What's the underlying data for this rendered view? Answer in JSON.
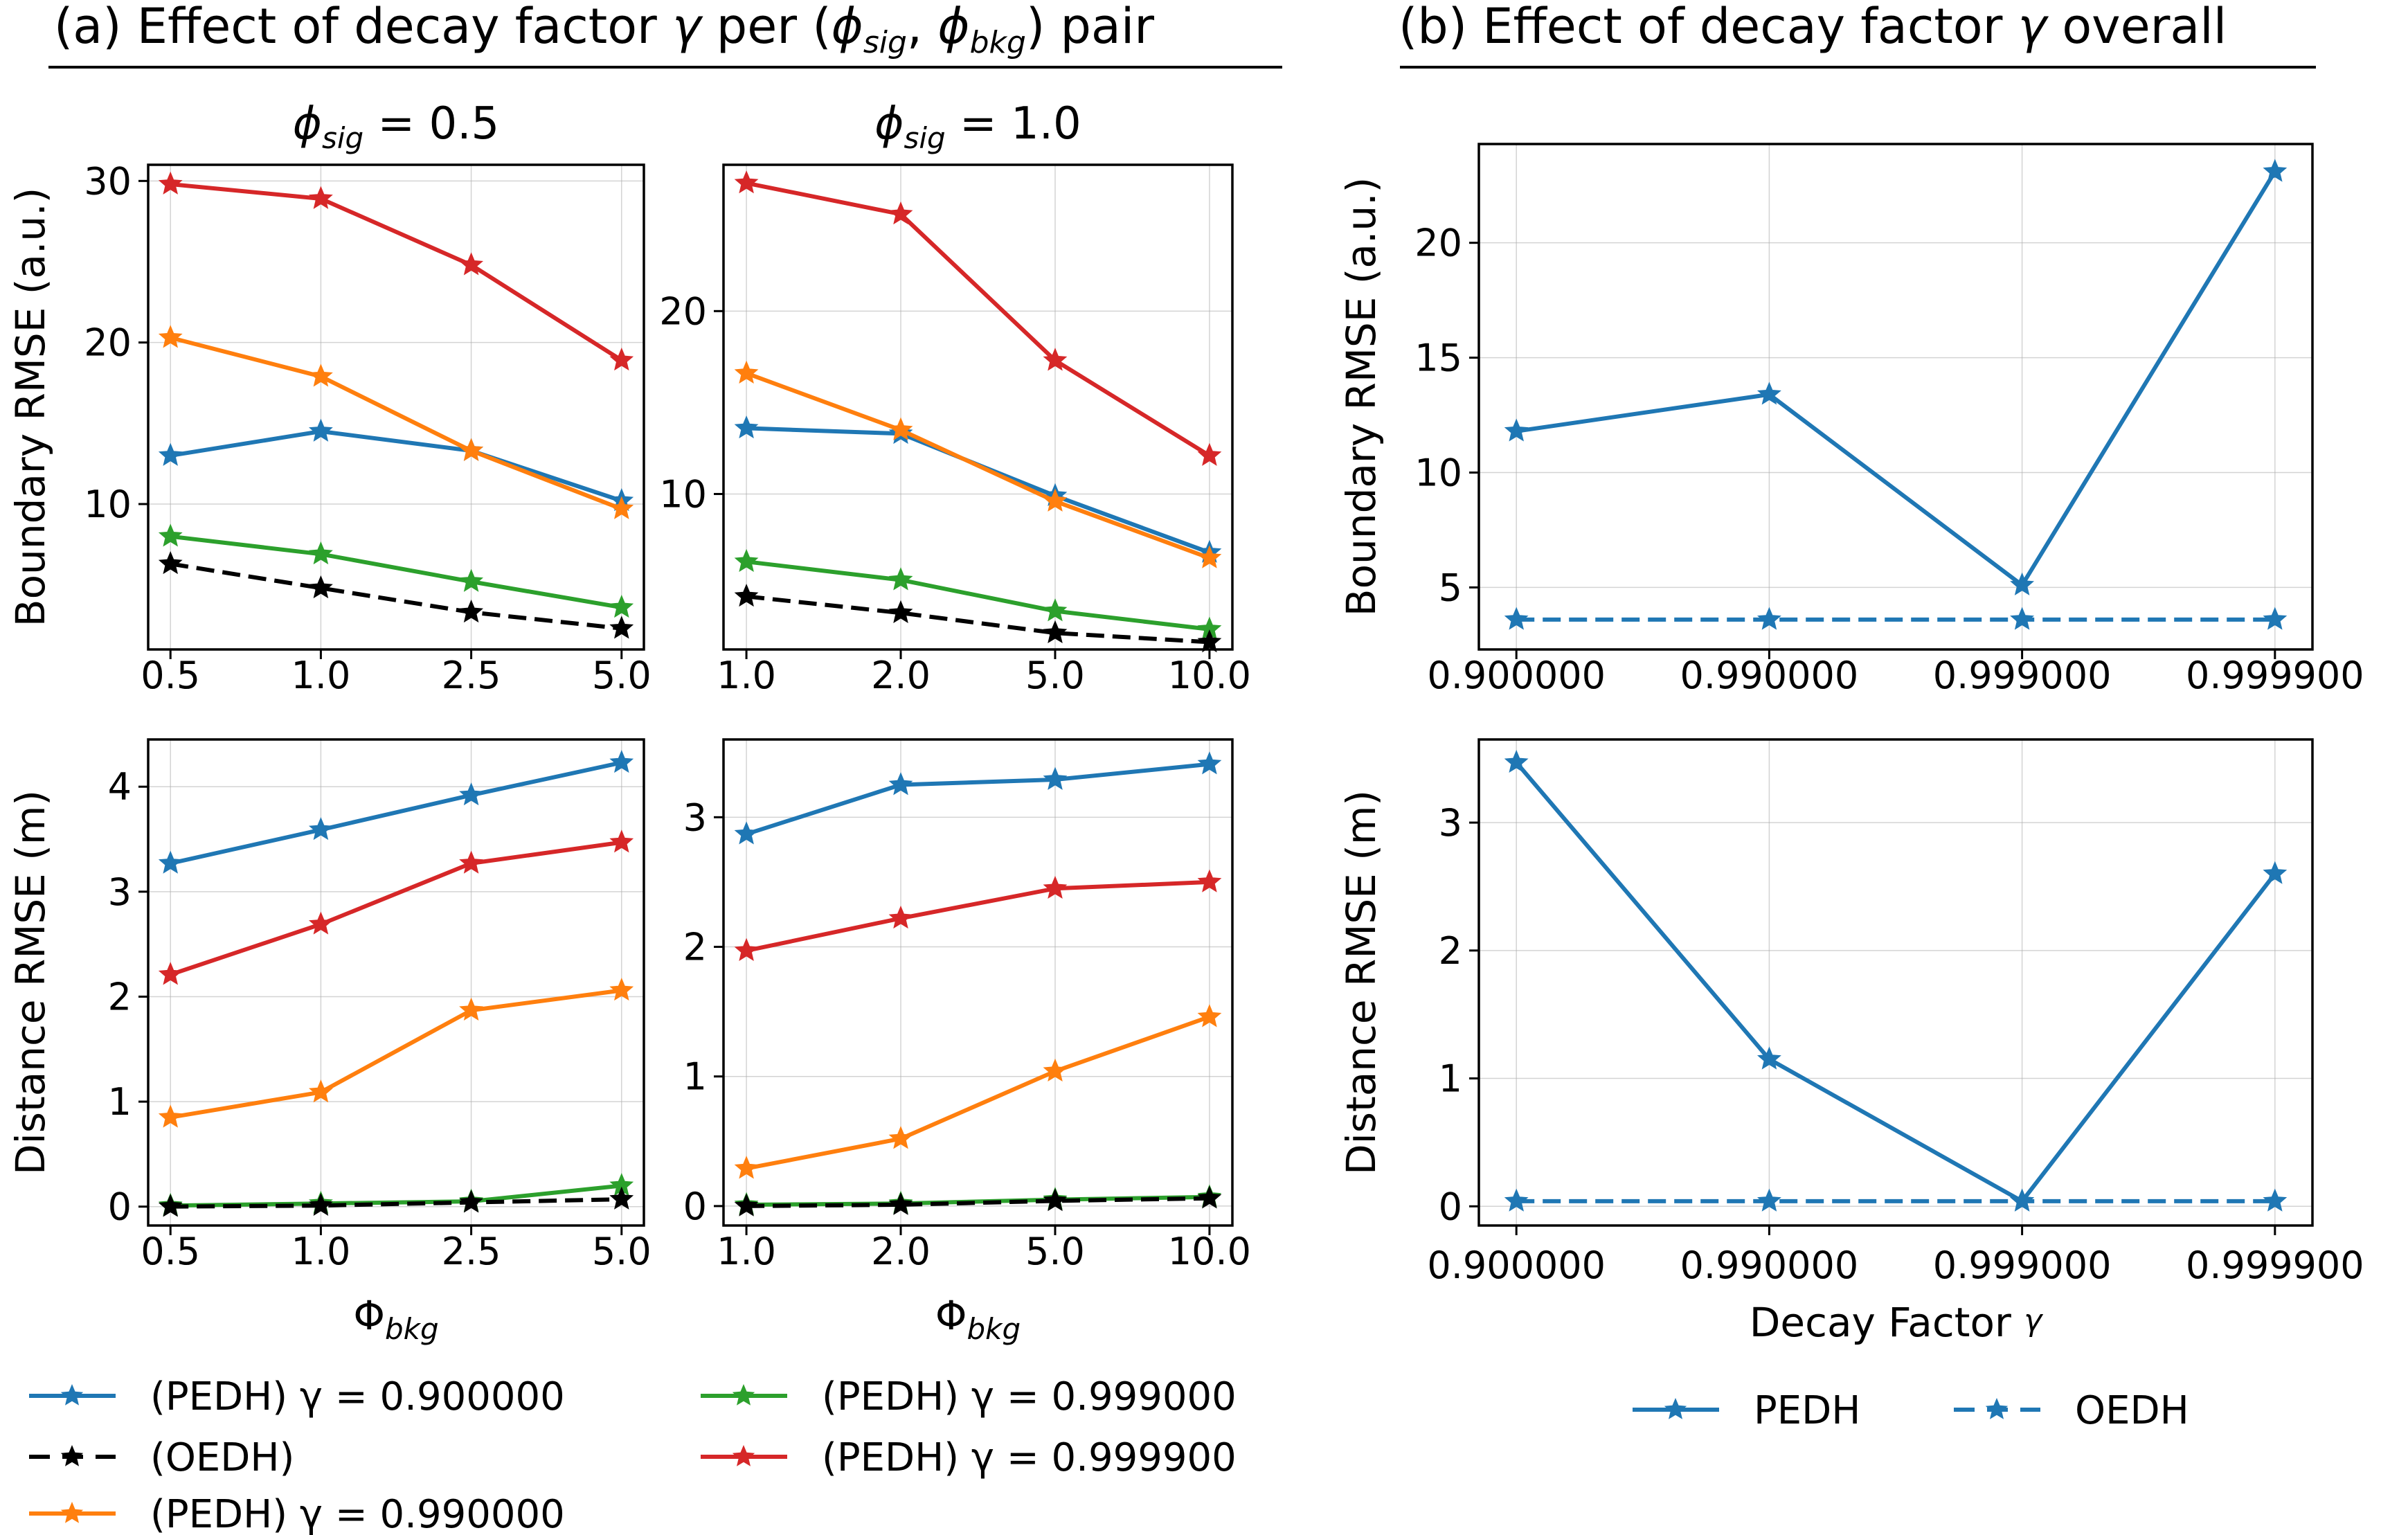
{
  "colors": {
    "pedh_0_9": "#1f77b4",
    "pedh_0_99": "#ff7f0e",
    "pedh_0_999": "#2ca02c",
    "pedh_0_9999": "#d62728",
    "oedh": "#000000",
    "overall": "#1f77b4"
  },
  "section_a": {
    "title_prefix": "(a) Effect of decay factor ",
    "gamma": "γ",
    "title_mid": " per (",
    "phi": "ϕ",
    "sig": "sig",
    "comma": ", ",
    "bkg": "bkg",
    "title_suffix": ") pair"
  },
  "section_b": {
    "title_prefix": "(b) Effect of decay factor ",
    "gamma": "γ",
    "title_suffix": " overall"
  },
  "legend_a": [
    {
      "id": "pedh_0_9",
      "text": "(PEDH) γ = 0.900000",
      "style": "solid"
    },
    {
      "id": "oedh",
      "text": "(OEDH)",
      "style": "dashed"
    },
    {
      "id": "pedh_0_99",
      "text": "(PEDH) γ = 0.990000",
      "style": "solid"
    },
    {
      "id": "pedh_0_999",
      "text": "(PEDH) γ = 0.999000",
      "style": "solid"
    },
    {
      "id": "pedh_0_9999",
      "text": "(PEDH) γ = 0.999900",
      "style": "solid"
    }
  ],
  "legend_b": [
    {
      "id": "overall",
      "text": "PEDH",
      "style": "solid"
    },
    {
      "id": "overall",
      "text": "OEDH",
      "style": "dashed"
    }
  ],
  "chart_data": [
    {
      "type": "line",
      "panel": "a-boundary-sig-0.5",
      "title_phi": "ϕ",
      "title_sub": "sig",
      "title_rest": " = 0.5",
      "ylabel": "Boundary RMSE (a.u.)",
      "xlabel": "",
      "categories": [
        "0.5",
        "1.0",
        "2.5",
        "5.0"
      ],
      "yticks": [
        10,
        20,
        30
      ],
      "ylim": [
        1.0,
        31.0
      ],
      "series": [
        {
          "id": "pedh_0_9",
          "style": "solid",
          "values": [
            13.0,
            14.5,
            13.3,
            10.2
          ]
        },
        {
          "id": "pedh_0_99",
          "style": "solid",
          "values": [
            20.3,
            17.9,
            13.3,
            9.7
          ]
        },
        {
          "id": "pedh_0_999",
          "style": "solid",
          "values": [
            8.0,
            6.9,
            5.2,
            3.6
          ]
        },
        {
          "id": "pedh_0_9999",
          "style": "solid",
          "values": [
            29.8,
            28.9,
            24.8,
            18.9
          ]
        },
        {
          "id": "oedh",
          "style": "dashed",
          "values": [
            6.3,
            4.8,
            3.3,
            2.3
          ]
        }
      ]
    },
    {
      "type": "line",
      "panel": "a-boundary-sig-1.0",
      "title_phi": "ϕ",
      "title_sub": "sig",
      "title_rest": " = 1.0",
      "ylabel": "",
      "xlabel": "",
      "categories": [
        "1.0",
        "2.0",
        "5.0",
        "10.0"
      ],
      "yticks": [
        10,
        20
      ],
      "ylim": [
        1.5,
        28.0
      ],
      "series": [
        {
          "id": "pedh_0_9",
          "style": "solid",
          "values": [
            13.6,
            13.3,
            9.9,
            6.8
          ]
        },
        {
          "id": "pedh_0_99",
          "style": "solid",
          "values": [
            16.6,
            13.5,
            9.6,
            6.5
          ]
        },
        {
          "id": "pedh_0_999",
          "style": "solid",
          "values": [
            6.3,
            5.3,
            3.6,
            2.6
          ]
        },
        {
          "id": "pedh_0_9999",
          "style": "solid",
          "values": [
            27.0,
            25.3,
            17.3,
            12.1
          ]
        },
        {
          "id": "oedh",
          "style": "dashed",
          "values": [
            4.4,
            3.5,
            2.4,
            1.9
          ]
        }
      ]
    },
    {
      "type": "line",
      "panel": "a-distance-sig-0.5",
      "ylabel": "Distance RMSE (m)",
      "xlabel_phi": "Φ",
      "xlabel_sub": "bkg",
      "categories": [
        "0.5",
        "1.0",
        "2.5",
        "5.0"
      ],
      "yticks": [
        0,
        1,
        2,
        3,
        4
      ],
      "ylim": [
        -0.18,
        4.45
      ],
      "series": [
        {
          "id": "pedh_0_9",
          "style": "solid",
          "values": [
            3.27,
            3.59,
            3.92,
            4.23
          ]
        },
        {
          "id": "pedh_0_99",
          "style": "solid",
          "values": [
            0.85,
            1.09,
            1.87,
            2.06
          ]
        },
        {
          "id": "pedh_0_999",
          "style": "solid",
          "values": [
            0.01,
            0.03,
            0.05,
            0.2
          ]
        },
        {
          "id": "pedh_0_9999",
          "style": "solid",
          "values": [
            2.21,
            2.69,
            3.27,
            3.47
          ]
        },
        {
          "id": "oedh",
          "style": "dashed",
          "values": [
            0.0,
            0.01,
            0.04,
            0.07
          ]
        }
      ]
    },
    {
      "type": "line",
      "panel": "a-distance-sig-1.0",
      "ylabel": "",
      "xlabel_phi": "Φ",
      "xlabel_sub": "bkg",
      "categories": [
        "1.0",
        "2.0",
        "5.0",
        "10.0"
      ],
      "yticks": [
        0,
        1,
        2,
        3
      ],
      "ylim": [
        -0.15,
        3.6
      ],
      "series": [
        {
          "id": "pedh_0_9",
          "style": "solid",
          "values": [
            2.87,
            3.25,
            3.29,
            3.41
          ]
        },
        {
          "id": "pedh_0_99",
          "style": "solid",
          "values": [
            0.29,
            0.52,
            1.04,
            1.46
          ]
        },
        {
          "id": "pedh_0_999",
          "style": "solid",
          "values": [
            0.01,
            0.02,
            0.05,
            0.07
          ]
        },
        {
          "id": "pedh_0_9999",
          "style": "solid",
          "values": [
            1.97,
            2.22,
            2.45,
            2.5
          ]
        },
        {
          "id": "oedh",
          "style": "dashed",
          "values": [
            0.0,
            0.01,
            0.04,
            0.06
          ]
        }
      ]
    },
    {
      "type": "line",
      "panel": "b-boundary",
      "ylabel": "Boundary RMSE (a.u.)",
      "xlabel": "",
      "categories": [
        "0.900000",
        "0.990000",
        "0.999000",
        "0.999900"
      ],
      "yticks": [
        5,
        10,
        15,
        20
      ],
      "ylim": [
        2.3,
        24.3
      ],
      "series": [
        {
          "id": "overall",
          "name": "PEDH",
          "style": "solid",
          "values": [
            11.8,
            13.4,
            5.1,
            23.1
          ]
        },
        {
          "id": "overall",
          "name": "OEDH",
          "style": "dashed",
          "values": [
            3.6,
            3.6,
            3.6,
            3.6
          ]
        }
      ]
    },
    {
      "type": "line",
      "panel": "b-distance",
      "ylabel": "Distance RMSE (m)",
      "xlabel_text": "Decay  Factor ",
      "xlabel_gamma": "γ",
      "categories": [
        "0.900000",
        "0.990000",
        "0.999000",
        "0.999900"
      ],
      "yticks": [
        0,
        1,
        2,
        3
      ],
      "ylim": [
        -0.15,
        3.65
      ],
      "series": [
        {
          "id": "overall",
          "name": "PEDH",
          "style": "solid",
          "values": [
            3.47,
            1.15,
            0.04,
            2.6
          ]
        },
        {
          "id": "overall",
          "name": "OEDH",
          "style": "dashed",
          "values": [
            0.04,
            0.04,
            0.04,
            0.04
          ]
        }
      ]
    }
  ]
}
